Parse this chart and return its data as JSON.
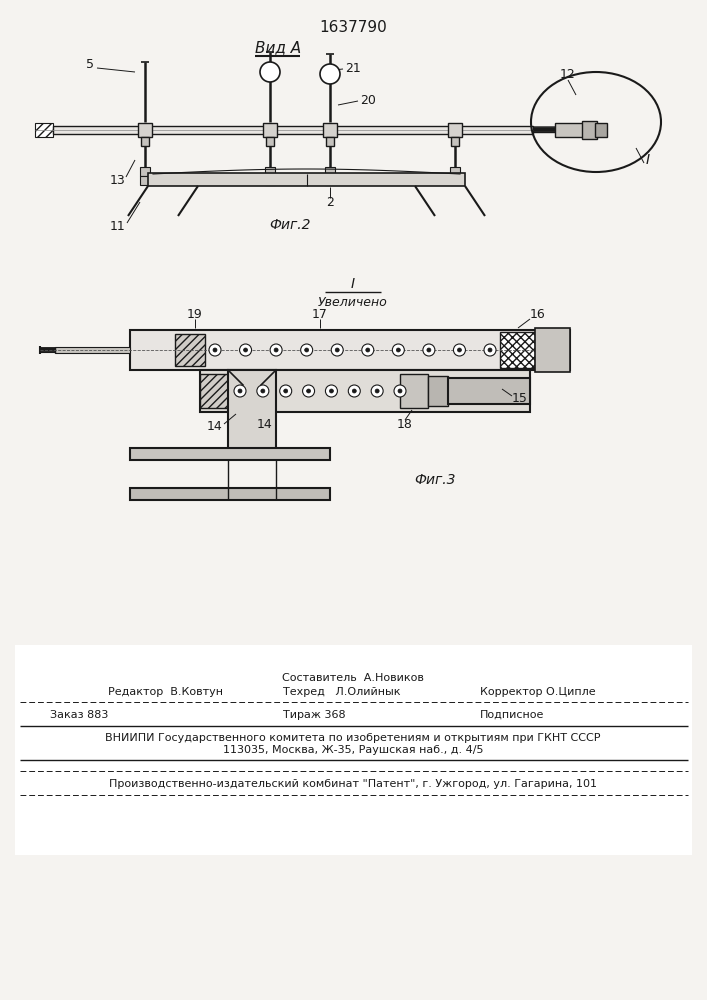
{
  "title": "1637790",
  "fig2_label": "Фиг.2",
  "fig3_label": "Фиг.3",
  "vid_a_label": "Вид А",
  "bg_color": "#f5f3f0",
  "line_color": "#1a1a1a",
  "footer": {
    "sostavitel": "Составитель  А.Новиков",
    "redaktor": "Редактор  В.Ковтун",
    "tekhred": "Техред   Л.Олийнык",
    "korrektor": "Корректор О.Ципле",
    "zakaz": "Заказ 883",
    "tirazh": "Тираж 368",
    "podpisnoe": "Подписное",
    "vniipи1": "ВНИИПИ Государственного комитета по изобретениям и открытиям при ГКНТ СССР",
    "vniipи2": "113035, Москва, Ж-35, Раушская наб., д. 4/5",
    "patent": "Производственно-издательский комбинат \"Патент\", г. Ужгород, ул. Гагарина, 101"
  }
}
